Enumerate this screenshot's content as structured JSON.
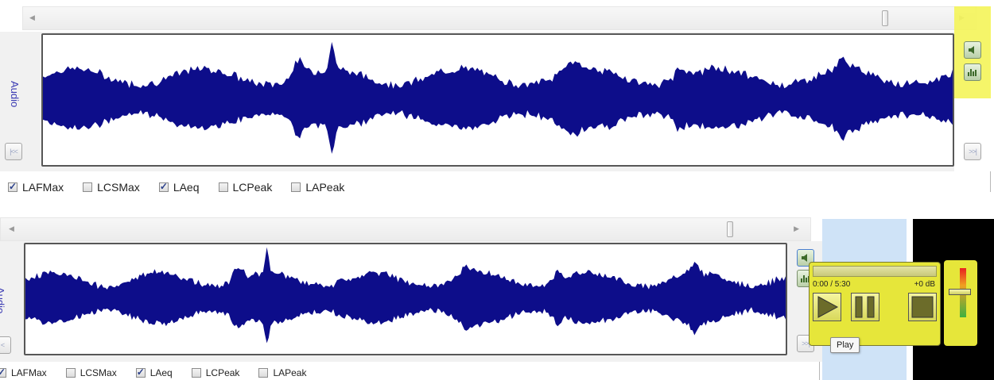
{
  "panels": [
    {
      "track_label": "Audio",
      "nav_prev_glyph": "|<<",
      "nav_next_glyph": ">>|",
      "metrics": [
        {
          "label": "LAFMax",
          "checked": true
        },
        {
          "label": "LCSMax",
          "checked": false
        },
        {
          "label": "LAeq",
          "checked": true
        },
        {
          "label": "LCPeak",
          "checked": false
        },
        {
          "label": "LAPeak",
          "checked": false
        }
      ]
    },
    {
      "track_label": "Audio",
      "nav_prev_glyph": "<",
      "nav_next_glyph": ">>|",
      "metrics": [
        {
          "label": "LAFMax",
          "checked": true
        },
        {
          "label": "LCSMax",
          "checked": false
        },
        {
          "label": "LAeq",
          "checked": true
        },
        {
          "label": "LCPeak",
          "checked": false
        },
        {
          "label": "LAPeak",
          "checked": false
        }
      ]
    }
  ],
  "player": {
    "time": "0:00 / 5:30",
    "gain": "+0 dB",
    "progress": 0
  },
  "tooltip": "Play",
  "colors": {
    "waveform": "#0d0d8a",
    "highlight": "#f4f45c",
    "player_panel": "#e6e63a",
    "side_blue": "#cfe3f7",
    "side_black": "#000000"
  },
  "icons": {
    "speaker": "speaker-icon",
    "equalizer": "equalizer-icon",
    "play": "play-icon",
    "pause": "pause-icon",
    "stop": "stop-icon"
  }
}
